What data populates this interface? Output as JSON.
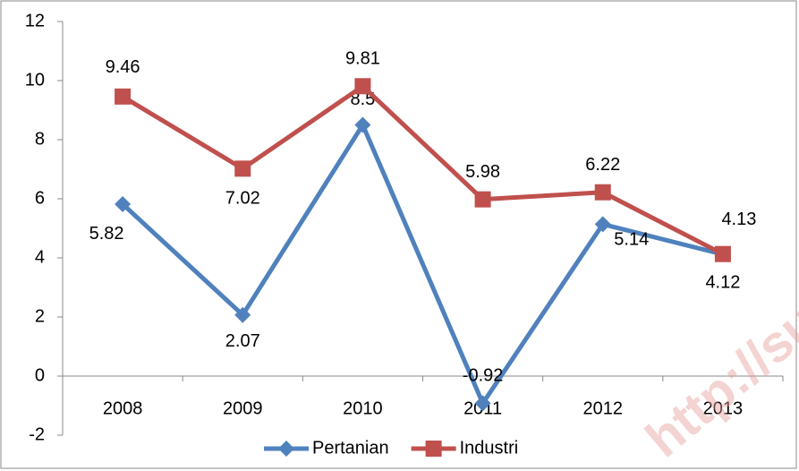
{
  "chart_data": {
    "type": "line",
    "categories": [
      "2008",
      "2009",
      "2010",
      "2011",
      "2012",
      "2013"
    ],
    "series": [
      {
        "name": "Pertanian",
        "color": "#4f81bd",
        "marker": "diamond",
        "values": [
          5.82,
          2.07,
          8.5,
          -0.92,
          5.14,
          4.12
        ]
      },
      {
        "name": "Industri",
        "color": "#c0504d",
        "marker": "square",
        "values": [
          9.46,
          7.02,
          9.81,
          5.98,
          6.22,
          4.13
        ]
      }
    ],
    "ylim": [
      -2,
      12
    ],
    "yticks": [
      -2,
      0,
      2,
      4,
      6,
      8,
      10,
      12
    ],
    "grid": false,
    "legend": "bottom",
    "watermark": "http://sul"
  }
}
